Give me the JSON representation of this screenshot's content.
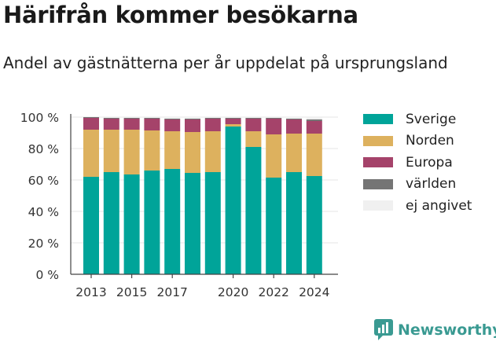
{
  "header": {
    "title": "Härifrån kommer besökarna",
    "subtitle": "Andel av gästnätterna per år uppdelat på ursprungsland"
  },
  "brand": {
    "name": "Newsworthy",
    "icon": "bar-chart-speech-icon",
    "color": "#3a9a92"
  },
  "chart_data": {
    "type": "bar",
    "stacked": true,
    "categories": [
      "2013",
      "2014",
      "2015",
      "2016",
      "2017",
      "2018",
      "2019",
      "2020",
      "2021",
      "2022",
      "2023",
      "2024"
    ],
    "x_tick_labels": [
      "2013",
      "2015",
      "2017",
      "2020",
      "2022",
      "2024"
    ],
    "y_tick_labels": [
      "0 %",
      "20 %",
      "40 %",
      "60 %",
      "80 %",
      "100 %"
    ],
    "ylim": [
      0,
      100
    ],
    "grid": true,
    "legend_position": "right",
    "series": [
      {
        "name": "Sverige",
        "color": "#00a499",
        "values": [
          62,
          65,
          63.5,
          66,
          67,
          64.5,
          65,
          94,
          81,
          61.5,
          65,
          62.5
        ]
      },
      {
        "name": "Norden",
        "color": "#ddb15e",
        "values": [
          30,
          27,
          28.5,
          25.5,
          24,
          26,
          26,
          1.5,
          10,
          27.5,
          24.5,
          27
        ]
      },
      {
        "name": "Europa",
        "color": "#a5436a",
        "values": [
          7.5,
          7,
          7,
          7.5,
          7.5,
          8,
          8,
          3.5,
          8,
          10,
          9,
          8
        ]
      },
      {
        "name": "världen",
        "color": "#757575",
        "values": [
          0.5,
          0.5,
          0.5,
          0.5,
          0.5,
          0.5,
          0.5,
          0.5,
          0.5,
          0.5,
          0.5,
          1
        ]
      },
      {
        "name": "ej angivet",
        "color": "#f0f0f0",
        "values": [
          0,
          0.5,
          0.5,
          0.5,
          1,
          1,
          0.5,
          0.5,
          0.5,
          0.5,
          1,
          1.5
        ]
      }
    ]
  }
}
